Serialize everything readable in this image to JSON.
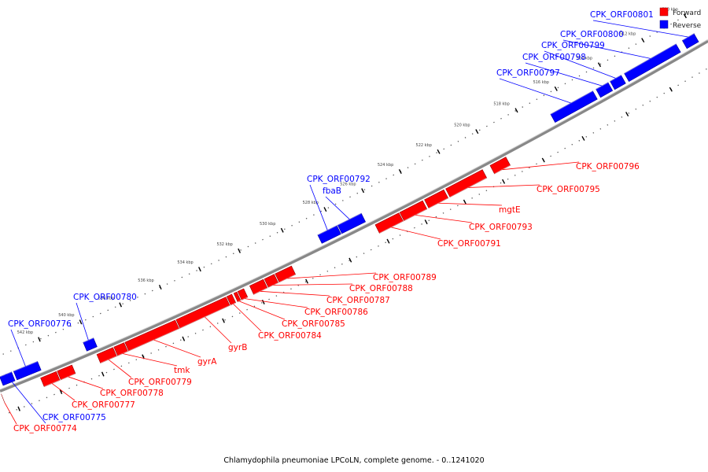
{
  "genome_caption": "Chlamydophila pneumoniae LPCoLN, complete genome. - 0..1241020",
  "legend": {
    "forward": {
      "label": "Forward",
      "color": "#ff0000"
    },
    "reverse": {
      "label": "Reverse",
      "color": "#0000ff"
    }
  },
  "colors": {
    "forward": "#ff0000",
    "reverse": "#0000ff",
    "backbone": "#888888"
  },
  "ticks": [
    {
      "label": "510 kbp",
      "pos": 510
    },
    {
      "label": "512 kbp",
      "pos": 512
    },
    {
      "label": "514 kbp",
      "pos": 514
    },
    {
      "label": "516 kbp",
      "pos": 516
    },
    {
      "label": "518 kbp",
      "pos": 518
    },
    {
      "label": "520 kbp",
      "pos": 520
    },
    {
      "label": "522 kbp",
      "pos": 522
    },
    {
      "label": "524 kbp",
      "pos": 524
    },
    {
      "label": "526 kbp",
      "pos": 526
    },
    {
      "label": "528 kbp",
      "pos": 528
    },
    {
      "label": "530 kbp",
      "pos": 530
    },
    {
      "label": "532 kbp",
      "pos": 532
    },
    {
      "label": "534 kbp",
      "pos": 534
    },
    {
      "label": "536 kbp",
      "pos": 536
    },
    {
      "label": "538 kbp",
      "pos": 538
    },
    {
      "label": "540 kbp",
      "pos": 540
    },
    {
      "label": "542 kbp",
      "pos": 542
    },
    {
      "label": "544 kbp",
      "pos": 544
    }
  ],
  "genes": [
    {
      "label": "CPK_ORF00801",
      "strand": "reverse",
      "start": 510.05,
      "end": 510.6
    },
    {
      "label": "CPK_ORF00800",
      "strand": "reverse",
      "start": 510.9,
      "end": 513.3
    },
    {
      "label": "CPK_ORF00799",
      "strand": "reverse",
      "start": 513.45,
      "end": 513.95
    },
    {
      "label": "CPK_ORF00798",
      "strand": "reverse",
      "start": 514.05,
      "end": 514.6
    },
    {
      "label": "CPK_ORF00797",
      "strand": "reverse",
      "start": 514.75,
      "end": 516.75
    },
    {
      "label": "CPK_ORF00796",
      "strand": "forward",
      "start": 519.4,
      "end": 520.2
    },
    {
      "label": "CPK_ORF00795",
      "strand": "forward",
      "start": 520.6,
      "end": 522.5
    },
    {
      "label": "mgtE",
      "strand": "forward",
      "start": 522.6,
      "end": 523.6
    },
    {
      "label": "CPK_ORF00793",
      "strand": "forward",
      "start": 523.7,
      "end": 524.9
    },
    {
      "label": "CPK_ORF00791",
      "strand": "forward",
      "start": 524.95,
      "end": 526.2
    },
    {
      "label": "fbaB",
      "strand": "reverse",
      "start": 526.55,
      "end": 527.8
    },
    {
      "label": "CPK_ORF00792",
      "strand": "reverse",
      "start": 527.85,
      "end": 528.75
    },
    {
      "label": "CPK_ORF00789",
      "strand": "forward",
      "start": 530.3,
      "end": 531.05
    },
    {
      "label": "CPK_ORF00788",
      "strand": "forward",
      "start": 531.1,
      "end": 531.55
    },
    {
      "label": "CPK_ORF00787",
      "strand": "forward",
      "start": 531.6,
      "end": 532.25
    },
    {
      "label": "CPK_ORF00786",
      "strand": "forward",
      "start": 532.55,
      "end": 532.85
    },
    {
      "label": "CPK_ORF00785",
      "strand": "forward",
      "start": 532.9,
      "end": 533.05
    },
    {
      "label": "CPK_ORF00784",
      "strand": "forward",
      "start": 533.15,
      "end": 533.4
    },
    {
      "label": "gyrB",
      "strand": "forward",
      "start": 533.45,
      "end": 535.95
    },
    {
      "label": "gyrA",
      "strand": "forward",
      "start": 536.0,
      "end": 538.5
    },
    {
      "label": "tmk",
      "strand": "forward",
      "start": 538.55,
      "end": 539.05
    },
    {
      "label": "CPK_ORF00779",
      "strand": "forward",
      "start": 539.1,
      "end": 539.9
    },
    {
      "label": "CPK_ORF00780",
      "strand": "reverse",
      "start": 539.75,
      "end": 540.25
    },
    {
      "label": "CPK_ORF00778",
      "strand": "forward",
      "start": 541.1,
      "end": 541.8
    },
    {
      "label": "CPK_ORF00777",
      "strand": "forward",
      "start": 541.85,
      "end": 542.6
    },
    {
      "label": "CPK_ORF00776",
      "strand": "reverse",
      "start": 542.45,
      "end": 543.6
    },
    {
      "label": "CPK_ORF00775",
      "strand": "reverse",
      "start": 543.7,
      "end": 544.25
    },
    {
      "label": "CPK_ORF00774",
      "strand": "forward",
      "start": 545.3,
      "end": 546.0
    }
  ]
}
